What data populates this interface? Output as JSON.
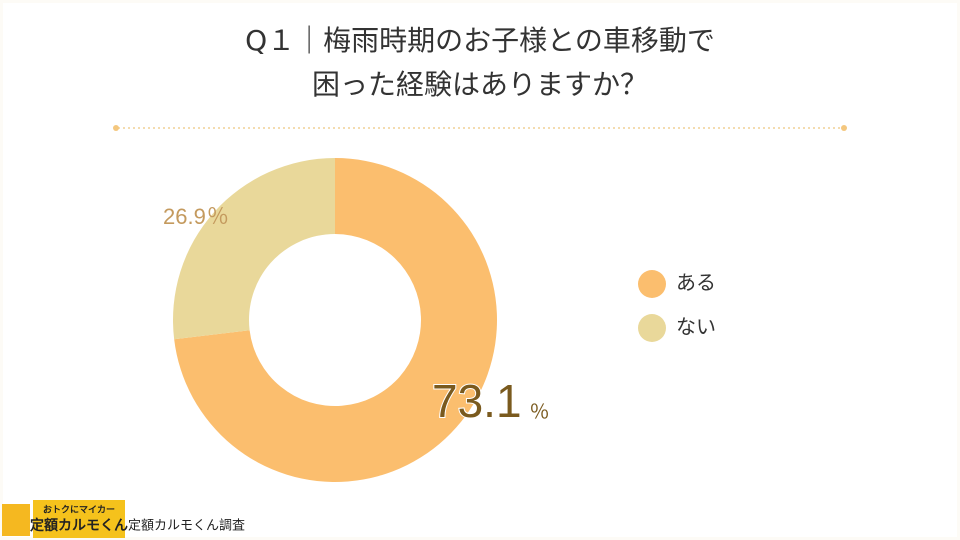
{
  "chart_data": {
    "type": "donut",
    "title": [
      "Q１｜梅雨時期のお子様との車移動で",
      "困った経験はありますか？"
    ],
    "categories": [
      "ある",
      "ない"
    ],
    "values": [
      73.1,
      26.9
    ],
    "colors": [
      "#fbbe6e",
      "#e9d89a"
    ],
    "unit": "％",
    "legend": "right"
  },
  "footer": {
    "logo_top": "おトクにマイカー",
    "logo_main": "定額カルモくん",
    "credit": "定額カルモくん調査"
  }
}
